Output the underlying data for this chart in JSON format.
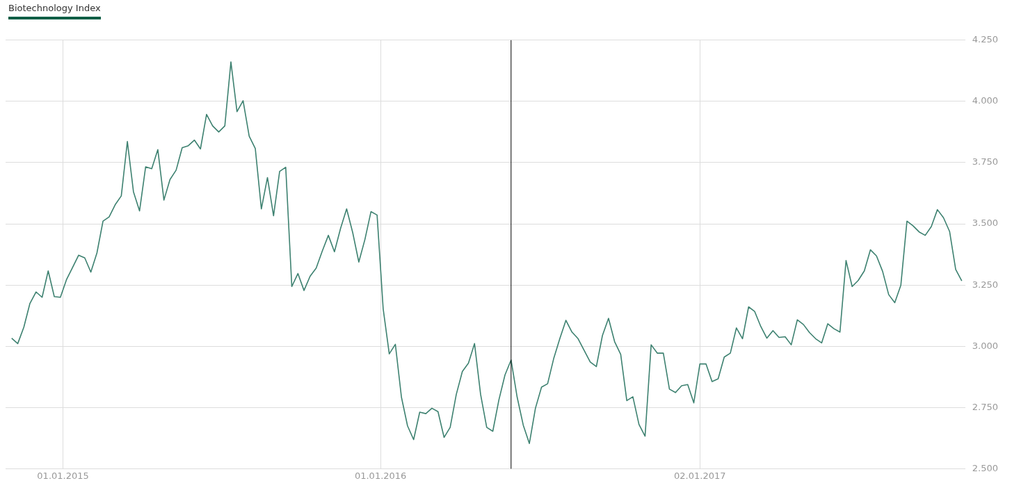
{
  "chart_data": {
    "type": "line",
    "title": "Biotechnology Index",
    "x": [
      "2014-11-03",
      "2014-11-10",
      "2014-11-17",
      "2014-11-24",
      "2014-12-01",
      "2014-12-08",
      "2014-12-15",
      "2014-12-22",
      "2014-12-29",
      "2015-01-05",
      "2015-01-12",
      "2015-01-19",
      "2015-01-26",
      "2015-02-02",
      "2015-02-09",
      "2015-02-16",
      "2015-02-23",
      "2015-03-02",
      "2015-03-09",
      "2015-03-16",
      "2015-03-23",
      "2015-03-30",
      "2015-04-06",
      "2015-04-13",
      "2015-04-20",
      "2015-04-27",
      "2015-05-04",
      "2015-05-11",
      "2015-05-18",
      "2015-05-25",
      "2015-06-01",
      "2015-06-08",
      "2015-06-15",
      "2015-06-22",
      "2015-06-29",
      "2015-07-06",
      "2015-07-13",
      "2015-07-20",
      "2015-07-27",
      "2015-08-03",
      "2015-08-10",
      "2015-08-17",
      "2015-08-24",
      "2015-08-31",
      "2015-09-07",
      "2015-09-14",
      "2015-09-21",
      "2015-09-28",
      "2015-10-05",
      "2015-10-12",
      "2015-10-19",
      "2015-10-26",
      "2015-11-02",
      "2015-11-09",
      "2015-11-16",
      "2015-11-23",
      "2015-11-30",
      "2015-12-07",
      "2015-12-14",
      "2015-12-21",
      "2015-12-28",
      "2016-01-04",
      "2016-01-11",
      "2016-01-18",
      "2016-01-25",
      "2016-02-01",
      "2016-02-08",
      "2016-02-15",
      "2016-02-22",
      "2016-02-29",
      "2016-03-07",
      "2016-03-14",
      "2016-03-21",
      "2016-03-28",
      "2016-04-04",
      "2016-04-11",
      "2016-04-18",
      "2016-04-25",
      "2016-05-02",
      "2016-05-09",
      "2016-05-16",
      "2016-05-23",
      "2016-05-30",
      "2016-06-06",
      "2016-06-13",
      "2016-06-20",
      "2016-06-27",
      "2016-07-04",
      "2016-07-11",
      "2016-07-18",
      "2016-07-25",
      "2016-08-01",
      "2016-08-08",
      "2016-08-15",
      "2016-08-22",
      "2016-08-29",
      "2016-09-05",
      "2016-09-12",
      "2016-09-19",
      "2016-09-26",
      "2016-10-03",
      "2016-10-10",
      "2016-10-17",
      "2016-10-24",
      "2016-10-31",
      "2016-11-07",
      "2016-11-14",
      "2016-11-21",
      "2016-11-28",
      "2016-12-05",
      "2016-12-12",
      "2016-12-19",
      "2016-12-26",
      "2017-01-02",
      "2017-01-09",
      "2017-01-16",
      "2017-01-23",
      "2017-01-30",
      "2017-02-06",
      "2017-02-13",
      "2017-02-20",
      "2017-02-27",
      "2017-03-06",
      "2017-03-13",
      "2017-03-20",
      "2017-03-27",
      "2017-04-03",
      "2017-04-10",
      "2017-04-17",
      "2017-04-24",
      "2017-05-01",
      "2017-05-08",
      "2017-05-15",
      "2017-05-22",
      "2017-05-29",
      "2017-06-05",
      "2017-06-12",
      "2017-06-19",
      "2017-06-26",
      "2017-07-03",
      "2017-07-10",
      "2017-07-17",
      "2017-07-24",
      "2017-07-31",
      "2017-08-07",
      "2017-08-14",
      "2017-08-21",
      "2017-08-28",
      "2017-09-04",
      "2017-09-11",
      "2017-09-18",
      "2017-09-25",
      "2017-10-02",
      "2017-10-09",
      "2017-10-16",
      "2017-10-23",
      "2017-10-30"
    ],
    "series": [
      {
        "color": "#3d8170",
        "values": [
          3033,
          3011,
          3078,
          3175,
          3222,
          3200,
          3308,
          3203,
          3200,
          3272,
          3322,
          3372,
          3361,
          3303,
          3381,
          3511,
          3528,
          3578,
          3614,
          3836,
          3631,
          3553,
          3733,
          3725,
          3803,
          3597,
          3681,
          3719,
          3811,
          3819,
          3842,
          3806,
          3947,
          3900,
          3875,
          3900,
          4161,
          3958,
          4003,
          3858,
          3808,
          3561,
          3689,
          3533,
          3714,
          3731,
          3244,
          3297,
          3228,
          3286,
          3319,
          3389,
          3453,
          3386,
          3481,
          3561,
          3464,
          3344,
          3436,
          3550,
          3536,
          3153,
          2969,
          3008,
          2792,
          2675,
          2619,
          2731,
          2725,
          2747,
          2733,
          2628,
          2669,
          2803,
          2897,
          2931,
          3011,
          2803,
          2669,
          2653,
          2781,
          2883,
          2944,
          2792,
          2678,
          2603,
          2747,
          2833,
          2847,
          2950,
          3031,
          3106,
          3058,
          3031,
          2983,
          2936,
          2917,
          3044,
          3114,
          3019,
          2967,
          2778,
          2794,
          2681,
          2633,
          3006,
          2972,
          2972,
          2825,
          2811,
          2839,
          2844,
          2769,
          2928,
          2928,
          2856,
          2867,
          2956,
          2972,
          3075,
          3031,
          3161,
          3142,
          3081,
          3033,
          3064,
          3036,
          3039,
          3006,
          3108,
          3089,
          3056,
          3031,
          3014,
          3092,
          3072,
          3058,
          3350,
          3244,
          3269,
          3308,
          3394,
          3369,
          3306,
          3211,
          3178,
          3250,
          3511,
          3492,
          3467,
          3453,
          3489,
          3558,
          3525,
          3469,
          3314,
          3267
        ]
      }
    ],
    "xlim": [
      "2014-10-27",
      "2017-11-03"
    ],
    "xticks": [
      {
        "value": "2015-01-01",
        "label": "01.01.2015"
      },
      {
        "value": "2016-01-01",
        "label": "01.01.2016"
      },
      {
        "value": "2017-01-02",
        "label": "02.01.2017"
      }
    ],
    "ylim": [
      2500,
      4250
    ],
    "yticks": [
      {
        "value": 2500,
        "label": "2.500"
      },
      {
        "value": 2750,
        "label": "2.750"
      },
      {
        "value": 3000,
        "label": "3.000"
      },
      {
        "value": 3250,
        "label": "3.250"
      },
      {
        "value": 3500,
        "label": "3.500"
      },
      {
        "value": 3750,
        "label": "3.750"
      },
      {
        "value": 4000,
        "label": "4.000"
      },
      {
        "value": 4250,
        "label": "4.250"
      }
    ],
    "grid": true,
    "legend": false,
    "marker": "none",
    "line_style": "solid",
    "ref_lines": [
      {
        "axis": "x",
        "value": "2016-05-30",
        "color": "#000000"
      }
    ]
  }
}
